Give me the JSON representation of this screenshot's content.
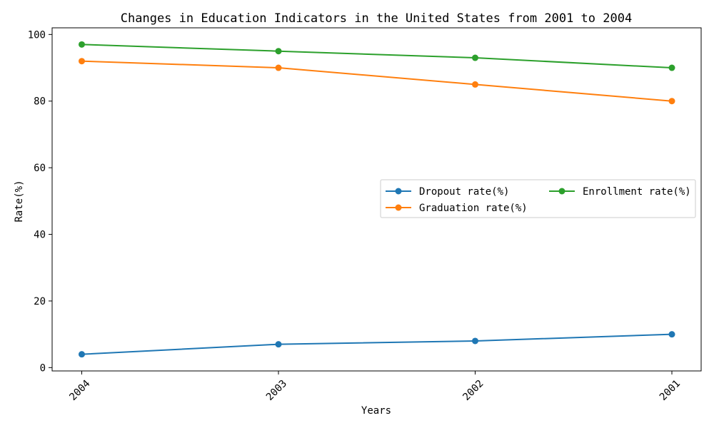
{
  "chart_data": {
    "type": "line",
    "title": "Changes in Education Indicators in the United States from 2001 to 2004",
    "xlabel": "Years",
    "ylabel": "Rate(%)",
    "categories": [
      "2004",
      "2003",
      "2002",
      "2001"
    ],
    "ylim": [
      -1,
      102
    ],
    "yticks": [
      0,
      20,
      40,
      60,
      80,
      100
    ],
    "grid": false,
    "legend_position": "center-right",
    "series": [
      {
        "name": "Dropout rate(%)",
        "values": [
          4,
          7,
          8,
          10
        ],
        "color": "#1f77b4"
      },
      {
        "name": "Graduation rate(%)",
        "values": [
          92,
          90,
          85,
          80
        ],
        "color": "#ff7f0e"
      },
      {
        "name": "Enrollment rate(%)",
        "values": [
          97,
          95,
          93,
          90
        ],
        "color": "#2ca02c"
      }
    ]
  }
}
